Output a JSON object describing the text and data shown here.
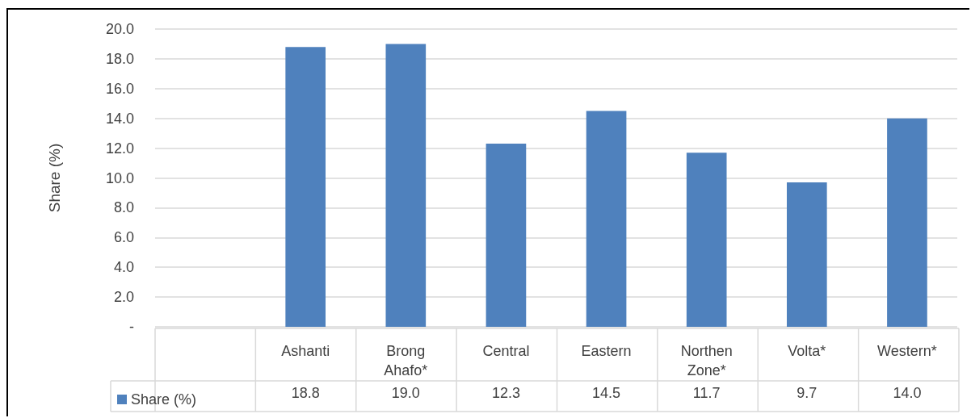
{
  "chart_data": {
    "type": "bar",
    "categories": [
      null,
      "Ashanti",
      "Brong\nAhafo*",
      "Central",
      "Eastern",
      "Northen\nZone*",
      "Volta*",
      "Western*"
    ],
    "series": [
      {
        "name": "Share (%)",
        "color": "#4f81bd",
        "values": [
          null,
          18.8,
          19.0,
          12.3,
          14.5,
          11.7,
          9.7,
          14.0
        ],
        "value_labels": [
          null,
          "18.8",
          "19.0",
          "12.3",
          "14.5",
          "11.7",
          "9.7",
          "14.0"
        ]
      }
    ],
    "ylabel": "Share (%)",
    "ylim": [
      0,
      20
    ],
    "yticks": [
      {
        "value": 0,
        "label": "-"
      },
      {
        "value": 2,
        "label": "2.0"
      },
      {
        "value": 4,
        "label": "4.0"
      },
      {
        "value": 6,
        "label": "6.0"
      },
      {
        "value": 8,
        "label": "8.0"
      },
      {
        "value": 10,
        "label": "10.0"
      },
      {
        "value": 12,
        "label": "12.0"
      },
      {
        "value": 14,
        "label": "14.0"
      },
      {
        "value": 16,
        "label": "16.0"
      },
      {
        "value": 18,
        "label": "18.0"
      },
      {
        "value": 20,
        "label": "20.0"
      }
    ],
    "grid": "y",
    "legend": "bottom left"
  }
}
